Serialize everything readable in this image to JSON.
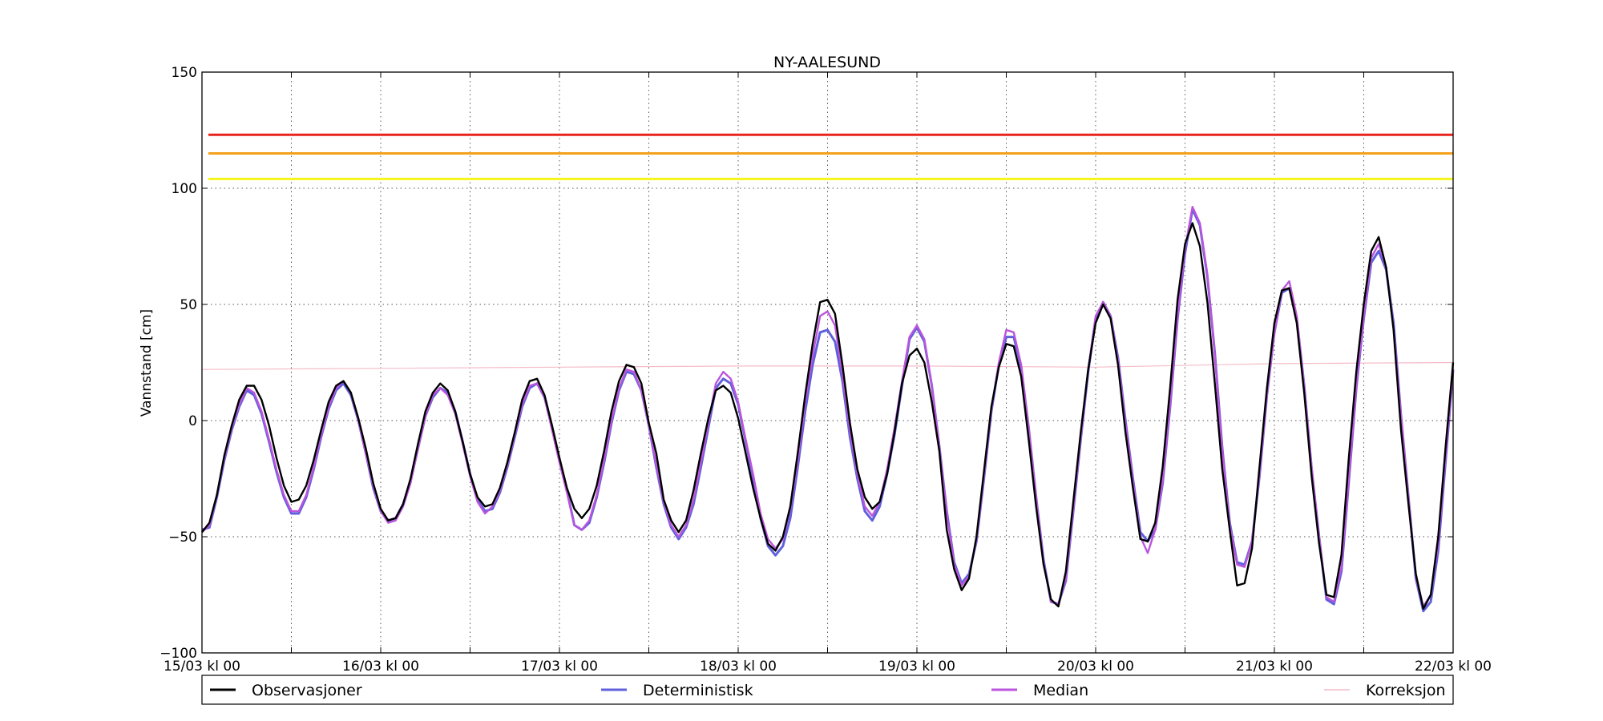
{
  "chart_data": {
    "type": "line",
    "title": "NY-AALESUND",
    "ylabel": "Vannstand [cm]",
    "xlabel": "",
    "ylim": [
      -100,
      150
    ],
    "yticks": [
      150,
      100,
      50,
      0,
      -50,
      -100
    ],
    "ytick_labels": [
      "150",
      "100",
      "50",
      "0",
      "−50",
      "−100"
    ],
    "x_range_hours": [
      0,
      168
    ],
    "x_tick_labels": [
      "15/03 kl 00",
      "16/03 kl 00",
      "17/03 kl 00",
      "18/03 kl 00",
      "19/03 kl 00",
      "20/03 kl 00",
      "21/03 kl 00",
      "22/03 kl 00"
    ],
    "grid": true,
    "legend": "bottom, outside, horizontal",
    "thresholds": [
      {
        "value": 123,
        "color": "#e8231d"
      },
      {
        "value": 115,
        "color": "#f5a11a"
      },
      {
        "value": 104,
        "color": "#f5f51a"
      }
    ],
    "series": [
      {
        "name": "Observasjoner",
        "color": "#000000",
        "x": [
          0,
          1,
          2,
          3,
          4,
          5,
          6,
          7,
          8,
          9,
          10,
          11,
          12,
          13,
          14,
          15,
          16,
          17,
          18,
          19,
          20,
          21,
          22,
          23,
          24,
          25,
          26,
          27,
          28,
          29,
          30,
          31,
          32,
          33,
          34,
          35,
          36,
          37,
          38,
          39,
          40,
          41,
          42,
          43,
          44,
          45,
          46,
          47,
          48,
          49,
          50,
          51,
          52,
          53,
          54,
          55,
          56,
          57,
          58,
          59,
          60,
          61,
          62,
          63,
          64,
          65,
          66,
          67,
          68,
          69,
          70,
          71,
          72,
          73,
          74,
          75,
          76,
          77,
          78,
          79,
          80,
          81,
          82,
          83,
          84,
          85,
          86,
          87,
          88,
          89,
          90,
          91,
          92,
          93,
          94,
          95,
          96,
          97,
          98,
          99,
          100,
          101,
          102,
          103,
          104,
          105,
          106,
          107,
          108,
          109,
          110,
          111,
          112,
          113,
          114,
          115,
          116,
          117,
          118,
          119,
          120,
          121,
          122,
          123,
          124,
          125,
          126,
          127,
          128,
          129,
          130,
          131,
          132,
          133,
          134,
          135,
          136,
          137,
          138,
          139,
          140,
          141,
          142,
          143,
          144,
          145,
          146,
          147,
          148,
          149,
          150,
          151,
          152,
          153,
          154,
          155,
          156,
          157,
          158,
          159,
          160,
          161,
          162,
          163,
          164,
          165,
          166,
          167,
          168
        ],
        "values": [
          -48,
          -44,
          -32,
          -15,
          -2,
          9,
          15,
          15,
          9,
          -2,
          -16,
          -28,
          -35,
          -34,
          -28,
          -17,
          -4,
          8,
          15,
          17,
          12,
          1,
          -12,
          -27,
          -38,
          -43,
          -42,
          -36,
          -25,
          -10,
          4,
          12,
          16,
          13,
          4,
          -9,
          -23,
          -33,
          -37,
          -36,
          -29,
          -18,
          -5,
          9,
          17,
          18,
          11,
          -2,
          -16,
          -29,
          -38,
          -42,
          -38,
          -28,
          -13,
          4,
          17,
          24,
          23,
          16,
          -1,
          -14,
          -34,
          -43,
          -48,
          -43,
          -30,
          -14,
          1,
          13,
          15,
          12,
          1,
          -14,
          -29,
          -42,
          -53,
          -56,
          -50,
          -37,
          -14,
          11,
          33,
          51,
          52,
          46,
          24,
          -1,
          -21,
          -33,
          -38,
          -35,
          -23,
          -5,
          16,
          28,
          31,
          25,
          8,
          -13,
          -47,
          -64,
          -73,
          -68,
          -50,
          -22,
          6,
          23,
          33,
          32,
          19,
          -8,
          -37,
          -62,
          -77,
          -80,
          -65,
          -35,
          -5,
          22,
          42,
          50,
          44,
          24,
          -5,
          -29,
          -51,
          -52,
          -44,
          -20,
          14,
          52,
          76,
          85,
          75,
          51,
          16,
          -21,
          -47,
          -71,
          -70,
          -55,
          -20,
          14,
          42,
          56,
          57,
          42,
          12,
          -24,
          -53,
          -75,
          -76,
          -58,
          -16,
          21,
          50,
          73,
          79,
          66,
          39,
          -4,
          -36,
          -66,
          -81,
          -75,
          -50,
          -11,
          25
        ]
      },
      {
        "name": "Deterministisk",
        "color": "#6060dd",
        "x": [
          0,
          1,
          2,
          3,
          4,
          5,
          6,
          7,
          8,
          9,
          10,
          11,
          12,
          13,
          14,
          15,
          16,
          17,
          18,
          19,
          20,
          21,
          22,
          23,
          24,
          25,
          26,
          27,
          28,
          29,
          30,
          31,
          32,
          33,
          34,
          35,
          36,
          37,
          38,
          39,
          40,
          41,
          42,
          43,
          44,
          45,
          46,
          47,
          48,
          49,
          50,
          51,
          52,
          53,
          54,
          55,
          56,
          57,
          58,
          59,
          60,
          61,
          62,
          63,
          64,
          65,
          66,
          67,
          68,
          69,
          70,
          71,
          72,
          73,
          74,
          75,
          76,
          77,
          78,
          79,
          80,
          81,
          82,
          83,
          84,
          85,
          86,
          87,
          88,
          89,
          90,
          91,
          92,
          93,
          94,
          95,
          96,
          97,
          98,
          99,
          100,
          101,
          102,
          103,
          104,
          105,
          106,
          107,
          108,
          109,
          110,
          111,
          112,
          113,
          114,
          115,
          116,
          117,
          118,
          119,
          120,
          121,
          122,
          123,
          124,
          125,
          126,
          127,
          128,
          129,
          130,
          131,
          132,
          133,
          134,
          135,
          136,
          137,
          138,
          139,
          140,
          141,
          142,
          143,
          144,
          145,
          146,
          147,
          148,
          149,
          150,
          151,
          152,
          153,
          154,
          155,
          156,
          157,
          158,
          159,
          160,
          161,
          162,
          163,
          164,
          165,
          166,
          167,
          168
        ],
        "values": [
          -47,
          -46,
          -33,
          -17,
          -4,
          6,
          13,
          11,
          3,
          -9,
          -22,
          -33,
          -40,
          -40,
          -33,
          -21,
          -7,
          5,
          13,
          16,
          11,
          0,
          -14,
          -29,
          -39,
          -43,
          -42,
          -36,
          -26,
          -12,
          2,
          10,
          14,
          12,
          4,
          -9,
          -23,
          -34,
          -39,
          -38,
          -31,
          -20,
          -7,
          6,
          14,
          16,
          10,
          -3,
          -17,
          -30,
          -45,
          -47,
          -44,
          -33,
          -18,
          -1,
          13,
          21,
          20,
          13,
          -2,
          -20,
          -36,
          -46,
          -51,
          -46,
          -36,
          -20,
          -3,
          14,
          18,
          16,
          7,
          -9,
          -25,
          -42,
          -54,
          -58,
          -54,
          -42,
          -20,
          4,
          24,
          38,
          39,
          34,
          17,
          -7,
          -25,
          -39,
          -43,
          -37,
          -23,
          -6,
          15,
          35,
          40,
          34,
          15,
          -11,
          -39,
          -61,
          -70,
          -66,
          -52,
          -25,
          4,
          24,
          36,
          36,
          23,
          -3,
          -33,
          -60,
          -78,
          -79,
          -69,
          -39,
          -8,
          21,
          44,
          51,
          45,
          27,
          0,
          -25,
          -48,
          -52,
          -47,
          -27,
          6,
          44,
          72,
          91,
          84,
          62,
          29,
          -12,
          -44,
          -61,
          -62,
          -52,
          -24,
          11,
          38,
          55,
          57,
          44,
          15,
          -21,
          -50,
          -77,
          -79,
          -65,
          -26,
          14,
          44,
          68,
          73,
          65,
          42,
          2,
          -33,
          -68,
          -82,
          -78,
          -56,
          -17,
          22
        ]
      },
      {
        "name": "Median",
        "color": "#bb55dd",
        "x": [
          0,
          1,
          2,
          3,
          4,
          5,
          6,
          7,
          8,
          9,
          10,
          11,
          12,
          13,
          14,
          15,
          16,
          17,
          18,
          19,
          20,
          21,
          22,
          23,
          24,
          25,
          26,
          27,
          28,
          29,
          30,
          31,
          32,
          33,
          34,
          35,
          36,
          37,
          38,
          39,
          40,
          41,
          42,
          43,
          44,
          45,
          46,
          47,
          48,
          49,
          50,
          51,
          52,
          53,
          54,
          55,
          56,
          57,
          58,
          59,
          60,
          61,
          62,
          63,
          64,
          65,
          66,
          67,
          68,
          69,
          70,
          71,
          72,
          73,
          74,
          75,
          76,
          77,
          78,
          79,
          80,
          81,
          82,
          83,
          84,
          85,
          86,
          87,
          88,
          89,
          90,
          91,
          92,
          93,
          94,
          95,
          96,
          97,
          98,
          99,
          100,
          101,
          102,
          103,
          104,
          105,
          106,
          107,
          108,
          109,
          110,
          111,
          112,
          113,
          114,
          115,
          116,
          117,
          118,
          119,
          120,
          121,
          122,
          123,
          124,
          125,
          126,
          127,
          128,
          129,
          130,
          131,
          132,
          133,
          134,
          135,
          136,
          137,
          138,
          139,
          140,
          141,
          142,
          143,
          144,
          145,
          146,
          147,
          148,
          149,
          150,
          151,
          152,
          153,
          154,
          155,
          156,
          157,
          158,
          159,
          160,
          161,
          162,
          163,
          164,
          165,
          166,
          167,
          168
        ],
        "values": [
          -48,
          -45,
          -32,
          -16,
          -3,
          7,
          14,
          12,
          4,
          -8,
          -21,
          -32,
          -39,
          -39,
          -32,
          -20,
          -6,
          6,
          14,
          17,
          12,
          0,
          -14,
          -28,
          -39,
          -44,
          -43,
          -37,
          -27,
          -12,
          2,
          11,
          14,
          11,
          3,
          -10,
          -24,
          -35,
          -40,
          -37,
          -30,
          -19,
          -6,
          7,
          15,
          16,
          10,
          -4,
          -18,
          -31,
          -45,
          -47,
          -43,
          -32,
          -17,
          0,
          14,
          22,
          21,
          13,
          -2,
          -19,
          -35,
          -45,
          -50,
          -45,
          -34,
          -18,
          -1,
          16,
          21,
          18,
          8,
          -8,
          -23,
          -40,
          -51,
          -55,
          -51,
          -38,
          -17,
          8,
          28,
          45,
          47,
          41,
          20,
          -4,
          -23,
          -37,
          -41,
          -35,
          -21,
          -3,
          17,
          36,
          41,
          35,
          15,
          -11,
          -40,
          -62,
          -71,
          -67,
          -51,
          -24,
          5,
          25,
          39,
          38,
          24,
          -3,
          -33,
          -61,
          -78,
          -79,
          -68,
          -38,
          -7,
          22,
          45,
          51,
          45,
          26,
          -1,
          -26,
          -50,
          -57,
          -47,
          -26,
          7,
          45,
          74,
          92,
          85,
          63,
          28,
          -13,
          -45,
          -62,
          -63,
          -52,
          -23,
          11,
          38,
          56,
          60,
          45,
          15,
          -20,
          -50,
          -76,
          -78,
          -63,
          -25,
          15,
          45,
          70,
          76,
          66,
          40,
          2,
          -33,
          -67,
          -80,
          -75,
          -53,
          -15,
          22
        ]
      },
      {
        "name": "Korreksjon",
        "color": "#f5bcc8",
        "x": [
          0,
          24,
          48,
          72,
          96,
          120,
          144,
          168
        ],
        "values": [
          22,
          22.5,
          23,
          23.5,
          23.5,
          23,
          24.5,
          25
        ]
      }
    ]
  }
}
